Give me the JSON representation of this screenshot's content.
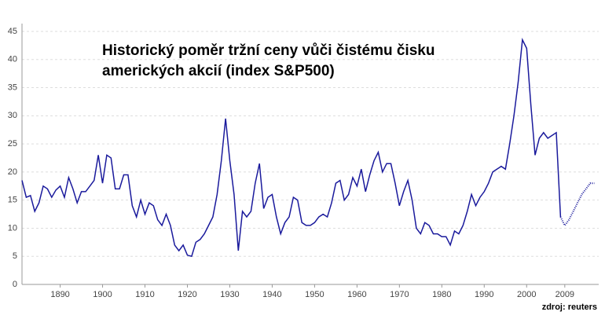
{
  "chart_data": {
    "type": "line",
    "title": [
      "Historický poměr tržní ceny vůči čistému čisku",
      "amerických akcií (index S&P500)"
    ],
    "source": "zdroj: reuters",
    "series": [
      {
        "color": "#1a1a9c",
        "dash": false,
        "x": [
          1881,
          1882,
          1883,
          1884,
          1885,
          1886,
          1887,
          1888,
          1889,
          1890,
          1891,
          1892,
          1893,
          1894,
          1895,
          1896,
          1897,
          1898,
          1899,
          1900,
          1901,
          1902,
          1903,
          1904,
          1905,
          1906,
          1907,
          1908,
          1909,
          1910,
          1911,
          1912,
          1913,
          1914,
          1915,
          1916,
          1917,
          1918,
          1919,
          1920,
          1921,
          1922,
          1923,
          1924,
          1925,
          1926,
          1927,
          1928,
          1929,
          1930,
          1931,
          1932,
          1933,
          1934,
          1935,
          1936,
          1937,
          1938,
          1939,
          1940,
          1941,
          1942,
          1943,
          1944,
          1945,
          1946,
          1947,
          1948,
          1949,
          1950,
          1951,
          1952,
          1953,
          1954,
          1955,
          1956,
          1957,
          1958,
          1959,
          1960,
          1961,
          1962,
          1963,
          1964,
          1965,
          1966,
          1967,
          1968,
          1969,
          1970,
          1971,
          1972,
          1973,
          1974,
          1975,
          1976,
          1977,
          1978,
          1979,
          1980,
          1981,
          1982,
          1983,
          1984,
          1985,
          1986,
          1987,
          1988,
          1989,
          1990,
          1991,
          1992,
          1993,
          1994,
          1995,
          1996,
          1997,
          1998,
          1999,
          2000,
          2001,
          2002,
          2003,
          2004,
          2005,
          2006,
          2007,
          2008
        ],
        "values": [
          18.5,
          15.5,
          15.8,
          13,
          14.5,
          17.5,
          17,
          15.5,
          16.8,
          17.5,
          15.5,
          19,
          17,
          14.5,
          16.5,
          16.5,
          17.5,
          18.5,
          23,
          18,
          23,
          22.5,
          17,
          17,
          19.5,
          19.5,
          14,
          12,
          15,
          12.5,
          14.5,
          14,
          11.5,
          10.5,
          12.5,
          10.5,
          7,
          6,
          7,
          5.2,
          5,
          7.5,
          8,
          9,
          10.5,
          12,
          16,
          22,
          29.5,
          22,
          16,
          6,
          13,
          12,
          13,
          18,
          21.5,
          13.5,
          15.5,
          16,
          12,
          9,
          11,
          12,
          15.5,
          15,
          11,
          10.5,
          10.5,
          11,
          12,
          12.5,
          12,
          14.5,
          18,
          18.5,
          15,
          16,
          19,
          17.5,
          20.5,
          16.5,
          19.5,
          22,
          23.5,
          20,
          21.5,
          21.5,
          18,
          14,
          16.5,
          18.5,
          15,
          10,
          9,
          11,
          10.5,
          9,
          9,
          8.5,
          8.5,
          7,
          9.5,
          9,
          10.5,
          13,
          16,
          14,
          15.5,
          16.5,
          18,
          20,
          20.5,
          21,
          20.5,
          25,
          30,
          36,
          43.5,
          42,
          32,
          23,
          26,
          27,
          26,
          26.5,
          27,
          12
        ]
      },
      {
        "color": "#1a1a9c",
        "dash": true,
        "x": [
          2008,
          2009,
          2010,
          2011,
          2012,
          2013,
          2014,
          2015,
          2016
        ],
        "values": [
          12,
          10.5,
          11.5,
          13,
          14.5,
          16,
          17,
          18,
          18
        ]
      }
    ],
    "xlim": [
      1881,
      2017
    ],
    "xticks": [
      1890,
      1900,
      1910,
      1920,
      1930,
      1940,
      1950,
      1960,
      1970,
      1980,
      1990,
      2000,
      2009
    ],
    "ylim": [
      0,
      45
    ],
    "yticks": [
      0,
      5,
      10,
      15,
      20,
      25,
      30,
      35,
      40,
      45
    ],
    "grid": true
  }
}
